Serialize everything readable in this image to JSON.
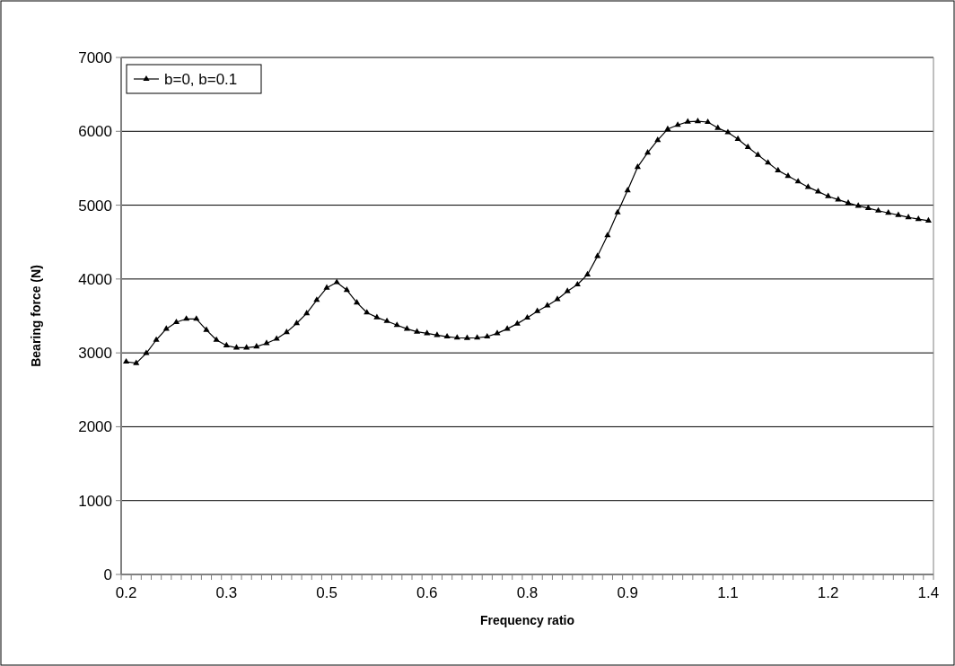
{
  "chart_data": {
    "type": "line",
    "xlabel": "Frequency ratio",
    "ylabel": "Bearing force (N)",
    "categories": [
      "0.2",
      null,
      null,
      null,
      null,
      null,
      null,
      null,
      null,
      null,
      "0.3",
      null,
      null,
      null,
      null,
      null,
      null,
      null,
      null,
      null,
      "0.5",
      null,
      null,
      null,
      null,
      null,
      null,
      null,
      null,
      null,
      "0.6",
      null,
      null,
      null,
      null,
      null,
      null,
      null,
      null,
      null,
      "0.8",
      null,
      null,
      null,
      null,
      null,
      null,
      null,
      null,
      null,
      "0.9",
      null,
      null,
      null,
      null,
      null,
      null,
      null,
      null,
      null,
      "1.1",
      null,
      null,
      null,
      null,
      null,
      null,
      null,
      null,
      null,
      "1.2",
      null,
      null,
      null,
      null,
      null,
      null,
      null,
      null,
      null,
      "1.4"
    ],
    "series": [
      {
        "name": "b=0, b=0.1",
        "color": "#000000",
        "values": [
          2880,
          2860,
          2995,
          3175,
          3325,
          3415,
          3460,
          3460,
          3310,
          3175,
          3100,
          3070,
          3070,
          3085,
          3130,
          3190,
          3280,
          3400,
          3535,
          3715,
          3880,
          3955,
          3850,
          3680,
          3545,
          3480,
          3430,
          3375,
          3325,
          3285,
          3265,
          3240,
          3220,
          3205,
          3200,
          3205,
          3220,
          3265,
          3325,
          3395,
          3475,
          3565,
          3640,
          3725,
          3835,
          3925,
          4060,
          4310,
          4590,
          4900,
          5200,
          5515,
          5710,
          5880,
          6030,
          6085,
          6130,
          6135,
          6125,
          6045,
          5985,
          5895,
          5785,
          5680,
          5575,
          5470,
          5395,
          5320,
          5245,
          5185,
          5120,
          5075,
          5030,
          4990,
          4960,
          4925,
          4895,
          4865,
          4835,
          4810,
          4790
        ]
      }
    ],
    "ylim": [
      0,
      7000
    ],
    "yticks": [
      0,
      1000,
      2000,
      3000,
      4000,
      5000,
      6000,
      7000
    ],
    "grid": "y",
    "legend": "top left",
    "marker": "triangle",
    "line_style": "solid"
  }
}
